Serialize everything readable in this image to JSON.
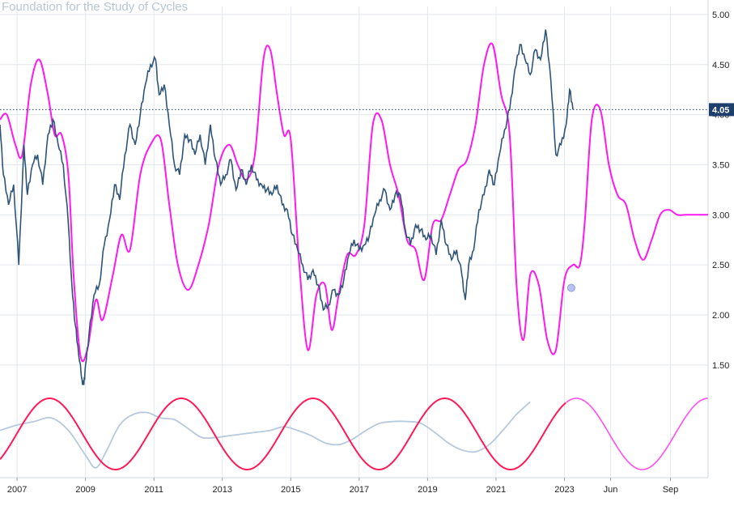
{
  "watermark": "Foundation for the Study of Cycles",
  "colors": {
    "price": "#2e5478",
    "projection": "#ff19f0",
    "cycle_hist": "#ff1a55",
    "cycle_future": "#ff4ff0",
    "cycle_detrended": "#b7c9dc",
    "grid": "#e3e8ee",
    "axis_text": "#222222",
    "last_label_bg": "#1e3f6b",
    "last_label_text": "#ffffff"
  },
  "chart_data": [
    {
      "type": "line",
      "title": "",
      "yaxis": {
        "ticks": [
          "5.00",
          "4.50",
          "4.00",
          "3.50",
          "3.00",
          "2.50",
          "2.00",
          "1.50"
        ],
        "tick_values": [
          5.0,
          4.5,
          4.0,
          3.5,
          3.0,
          2.5,
          2.0,
          1.5
        ],
        "range": [
          1.2,
          5.08
        ]
      },
      "xaxis": {
        "ticks": [
          "2007",
          "2009",
          "2011",
          "2013",
          "2015",
          "2017",
          "2019",
          "2021",
          "2023",
          "Jun",
          "Sep"
        ],
        "tick_values": [
          2007.0,
          2009.0,
          2011.0,
          2013.0,
          2015.0,
          2017.0,
          2019.0,
          2021.0,
          2023.0,
          2024.35,
          2026.1
        ],
        "range": [
          2006.5,
          2027.2
        ]
      },
      "last_value_label": "4.05",
      "last_value": 4.05,
      "series": [
        {
          "role": "price",
          "x": [
            2006.5,
            2006.6,
            2006.75,
            2006.9,
            2007.05,
            2007.2,
            2007.3,
            2007.45,
            2007.6,
            2007.75,
            2007.9,
            2008.05,
            2008.2,
            2008.35,
            2008.5,
            2008.6,
            2008.7,
            2008.8,
            2008.9,
            2008.95,
            2009.0,
            2009.1,
            2009.25,
            2009.4,
            2009.55,
            2009.7,
            2009.85,
            2010.0,
            2010.15,
            2010.3,
            2010.45,
            2010.6,
            2010.75,
            2010.9,
            2011.05,
            2011.15,
            2011.3,
            2011.45,
            2011.6,
            2011.75,
            2011.9,
            2012.05,
            2012.2,
            2012.35,
            2012.5,
            2012.65,
            2012.8,
            2012.95,
            2013.1,
            2013.25,
            2013.4,
            2013.55,
            2013.7,
            2013.85,
            2014.0,
            2014.15,
            2014.3,
            2014.45,
            2014.6,
            2014.75,
            2014.9,
            2015.05,
            2015.2,
            2015.35,
            2015.5,
            2015.65,
            2015.8,
            2015.95,
            2016.1,
            2016.25,
            2016.4,
            2016.55,
            2016.7,
            2016.85,
            2017.0,
            2017.15,
            2017.3,
            2017.45,
            2017.6,
            2017.75,
            2017.9,
            2018.05,
            2018.2,
            2018.35,
            2018.5,
            2018.65,
            2018.8,
            2018.95,
            2019.1,
            2019.25,
            2019.4,
            2019.55,
            2019.7,
            2019.85,
            2020.0,
            2020.1,
            2020.2,
            2020.35,
            2020.5,
            2020.65,
            2020.8,
            2020.95,
            2021.1,
            2021.25,
            2021.4,
            2021.55,
            2021.7,
            2021.85,
            2022.0,
            2022.15,
            2022.3,
            2022.45,
            2022.6,
            2022.75,
            2022.9,
            2023.05,
            2023.15,
            2023.25
          ],
          "y": [
            3.9,
            3.4,
            3.1,
            3.3,
            2.5,
            3.7,
            3.2,
            3.5,
            3.6,
            3.3,
            3.8,
            3.95,
            3.7,
            3.5,
            2.9,
            2.3,
            1.9,
            1.6,
            1.35,
            1.3,
            1.5,
            1.8,
            2.2,
            2.3,
            2.7,
            2.95,
            3.3,
            3.15,
            3.6,
            3.9,
            3.7,
            4.0,
            4.3,
            4.5,
            4.55,
            4.2,
            4.3,
            3.9,
            3.5,
            3.4,
            3.8,
            3.75,
            3.6,
            3.8,
            3.5,
            3.9,
            3.55,
            3.3,
            3.4,
            3.55,
            3.25,
            3.45,
            3.3,
            3.5,
            3.35,
            3.3,
            3.25,
            3.2,
            3.3,
            3.1,
            3.05,
            2.8,
            2.65,
            2.5,
            2.35,
            2.45,
            2.3,
            2.05,
            2.1,
            2.25,
            2.2,
            2.35,
            2.6,
            2.75,
            2.65,
            2.7,
            2.8,
            3.0,
            3.15,
            3.25,
            3.05,
            3.2,
            3.2,
            2.85,
            2.7,
            2.9,
            2.85,
            2.75,
            2.8,
            2.6,
            2.95,
            2.7,
            2.55,
            2.65,
            2.4,
            2.15,
            2.5,
            2.65,
            3.05,
            3.2,
            3.45,
            3.3,
            3.6,
            3.85,
            4.05,
            4.45,
            4.7,
            4.55,
            4.4,
            4.65,
            4.55,
            4.85,
            4.35,
            3.6,
            3.7,
            3.9,
            4.25,
            4.05
          ]
        },
        {
          "role": "projection",
          "x": [
            2006.5,
            2006.7,
            2006.95,
            2007.15,
            2007.4,
            2007.65,
            2007.9,
            2008.1,
            2008.3,
            2008.5,
            2008.65,
            2008.85,
            2009.05,
            2009.3,
            2009.5,
            2009.8,
            2010.05,
            2010.3,
            2010.6,
            2010.9,
            2011.2,
            2011.45,
            2011.7,
            2012.0,
            2012.3,
            2012.6,
            2012.9,
            2013.2,
            2013.45,
            2013.7,
            2013.95,
            2014.2,
            2014.4,
            2014.6,
            2014.8,
            2015.0,
            2015.25,
            2015.5,
            2015.75,
            2016.0,
            2016.2,
            2016.4,
            2016.65,
            2016.9,
            2017.15,
            2017.4,
            2017.65,
            2017.9,
            2018.15,
            2018.4,
            2018.65,
            2018.9,
            2019.15,
            2019.4,
            2019.65,
            2019.9,
            2020.15,
            2020.4,
            2020.65,
            2020.9,
            2021.15,
            2021.4,
            2021.6,
            2021.8,
            2022.0,
            2022.25,
            2022.5,
            2022.75,
            2023.0,
            2023.25,
            2023.45,
            2023.6,
            2023.8,
            2024.05,
            2024.3,
            2024.55,
            2024.8,
            2025.05,
            2025.3,
            2025.55,
            2025.8,
            2026.05,
            2026.3,
            2026.55,
            2026.8,
            2027.05,
            2027.2
          ],
          "y": [
            3.95,
            4.0,
            3.7,
            3.6,
            4.3,
            4.55,
            4.2,
            3.8,
            3.8,
            3.4,
            2.4,
            1.6,
            1.65,
            2.15,
            1.95,
            2.4,
            2.8,
            2.65,
            3.4,
            3.7,
            3.75,
            3.1,
            2.5,
            2.25,
            2.5,
            2.9,
            3.5,
            3.7,
            3.5,
            3.35,
            3.6,
            4.55,
            4.65,
            4.2,
            3.8,
            3.75,
            2.5,
            1.65,
            2.2,
            2.3,
            1.85,
            2.2,
            2.6,
            2.6,
            2.9,
            3.9,
            3.95,
            3.5,
            3.2,
            2.75,
            2.65,
            2.35,
            2.9,
            2.95,
            3.2,
            3.45,
            3.55,
            3.9,
            4.5,
            4.7,
            4.2,
            3.8,
            2.3,
            1.75,
            2.4,
            2.3,
            1.75,
            1.65,
            2.35,
            2.5,
            2.5,
            2.95,
            3.95,
            4.05,
            3.5,
            3.2,
            3.1,
            2.75,
            2.55,
            2.75,
            3.0,
            3.05,
            3.0,
            3.0,
            3.0,
            3.0,
            3.0
          ]
        }
      ],
      "marker": {
        "x": 2023.2,
        "y": 2.27
      }
    },
    {
      "type": "line",
      "title": "",
      "series": [
        {
          "role": "cycle",
          "x_start": 2006.5,
          "split_x": 2023.05,
          "x_end": 2027.2,
          "period_years": 3.85,
          "peak_x": 2007.95,
          "amplitude": 1.0
        },
        {
          "role": "detrended",
          "x": [
            2006.5,
            2007.0,
            2007.5,
            2008.0,
            2008.5,
            2009.0,
            2009.3,
            2009.6,
            2010.0,
            2010.4,
            2010.8,
            2011.2,
            2011.6,
            2012.0,
            2012.4,
            2012.8,
            2013.2,
            2013.6,
            2014.0,
            2014.4,
            2014.8,
            2015.2,
            2015.6,
            2016.0,
            2016.4,
            2016.8,
            2017.2,
            2017.6,
            2018.0,
            2018.4,
            2018.8,
            2019.2,
            2019.6,
            2020.0,
            2020.4,
            2020.8,
            2021.2,
            2021.6,
            2022.0
          ],
          "y": [
            0.1,
            0.25,
            0.35,
            0.45,
            0.1,
            -0.6,
            -0.95,
            -0.5,
            0.25,
            0.55,
            0.6,
            0.45,
            0.4,
            0.15,
            -0.1,
            -0.1,
            -0.05,
            0.0,
            0.05,
            0.1,
            0.2,
            0.1,
            -0.05,
            -0.25,
            -0.3,
            -0.15,
            0.1,
            0.3,
            0.35,
            0.35,
            0.3,
            0.05,
            -0.25,
            -0.45,
            -0.5,
            -0.3,
            0.1,
            0.55,
            0.9
          ]
        }
      ]
    }
  ]
}
